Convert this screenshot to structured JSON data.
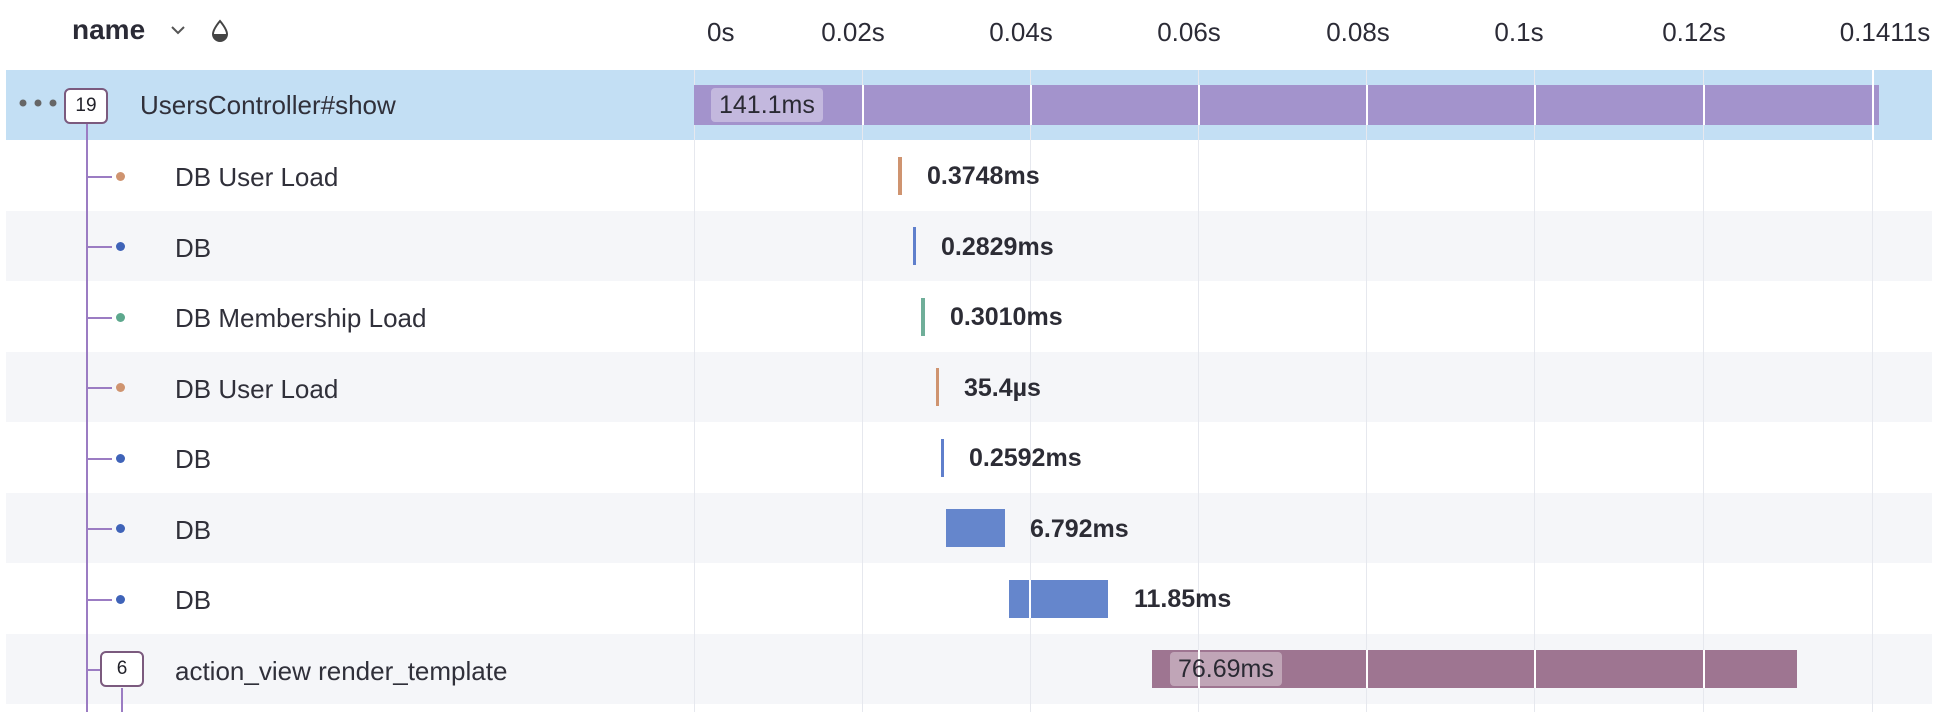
{
  "header": {
    "name_label": "name",
    "sort_icon": "chevron-down-icon",
    "extra_icon": "drop-icon",
    "ticks": [
      "0s",
      "0.02s",
      "0.04s",
      "0.06s",
      "0.08s",
      "0.1s",
      "0.12s",
      "0.1411s"
    ]
  },
  "rows": [
    {
      "label": "UsersController#show",
      "child_count": "19",
      "duration": "141.1ms",
      "color": "#a393cc",
      "selected": true
    },
    {
      "label": "DB User Load",
      "duration": "0.3748ms",
      "color": "#cf9470"
    },
    {
      "label": "DB",
      "duration": "0.2829ms",
      "color": "#5f7fcc"
    },
    {
      "label": "DB Membership Load",
      "duration": "0.3010ms",
      "color": "#6fae99"
    },
    {
      "label": "DB User Load",
      "duration": "35.4µs",
      "color": "#cf9470"
    },
    {
      "label": "DB",
      "duration": "0.2592ms",
      "color": "#5f7fcc"
    },
    {
      "label": "DB",
      "duration": "6.792ms",
      "color": "#6586cc"
    },
    {
      "label": "DB",
      "duration": "11.85ms",
      "color": "#6586cc"
    },
    {
      "label": "action_view render_template",
      "child_count": "6",
      "duration": "76.69ms",
      "color": "#9e7591"
    }
  ],
  "colors": {
    "selected_row": "#c3dff4",
    "alt_row": "#f5f6f9",
    "tree_line": "#9b7cc3",
    "badge_border": "#7b5a7e"
  }
}
